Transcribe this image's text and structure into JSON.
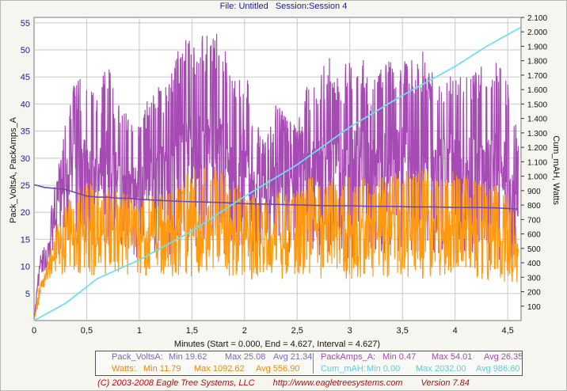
{
  "header": {
    "file": "File: Untitled",
    "session": "Session:Session 4"
  },
  "chart_data": {
    "type": "line",
    "y_left_label": "Pack_VoltsA, PackAmps_A",
    "y_right_label": "Cum_mAH, Watts",
    "x_label": "Minutes (Start = 0.000,  End = 4.627,  Interval =  4.627)",
    "xlim": [
      0,
      4.627
    ],
    "ylim_left": [
      0,
      56
    ],
    "ylim_right": [
      0,
      2100
    ],
    "x_ticks": [
      "0",
      "0,5",
      "1",
      "1,5",
      "2",
      "2,5",
      "3",
      "3,5",
      "4",
      "4,5"
    ],
    "y_left_ticks": [
      "5",
      "10",
      "15",
      "20",
      "25",
      "30",
      "35",
      "40",
      "45",
      "50",
      "55"
    ],
    "y_right_ticks": [
      "100",
      "200",
      "300",
      "400",
      "500",
      "600",
      "700",
      "800",
      "900",
      "1.000",
      "1.100",
      "1.200",
      "1.300",
      "1.400",
      "1.500",
      "1.600",
      "1.700",
      "1.800",
      "1.900",
      "2.000",
      "2.100"
    ],
    "grid": true,
    "series": [
      {
        "name": "PackAmps_A",
        "axis": "left",
        "color": "#a64ab4",
        "x": [
          0,
          0.05,
          0.1,
          0.2,
          0.3,
          0.4,
          0.5,
          0.6,
          0.7,
          0.8,
          0.9,
          1.0,
          1.1,
          1.2,
          1.3,
          1.4,
          1.5,
          1.6,
          1.7,
          1.8,
          1.9,
          2.0,
          2.1,
          2.2,
          2.3,
          2.4,
          2.5,
          2.6,
          2.7,
          2.8,
          2.9,
          3.0,
          3.1,
          3.2,
          3.3,
          3.4,
          3.5,
          3.6,
          3.7,
          3.8,
          3.9,
          4.0,
          4.1,
          4.2,
          4.3,
          4.4,
          4.5,
          4.6
        ],
        "values_high": [
          0,
          12,
          14,
          25,
          38,
          45,
          44,
          42,
          48,
          40,
          38,
          37,
          42,
          44,
          46,
          52,
          52,
          53,
          54,
          52,
          47,
          48,
          38,
          34,
          40,
          38,
          36,
          44,
          46,
          49,
          45,
          49,
          50,
          44,
          47,
          49,
          49,
          48,
          50,
          47,
          46,
          49,
          45,
          48,
          47,
          48,
          44,
          35
        ],
        "values_low": [
          0,
          8,
          9,
          12,
          14,
          13,
          14,
          12,
          13,
          12,
          13,
          11,
          12,
          13,
          12,
          13,
          12,
          11,
          13,
          12,
          12,
          12,
          11,
          12,
          11,
          11,
          12,
          12,
          11,
          12,
          12,
          11,
          12,
          13,
          12,
          11,
          12,
          12,
          12,
          11,
          12,
          12,
          12,
          12,
          11,
          11,
          11,
          10
        ],
        "min": "0.47",
        "max": "54.01",
        "avg": "26.35"
      },
      {
        "name": "Pack_VoltsA",
        "axis": "left",
        "color": "#6a4ab0",
        "x": [
          0,
          0.02,
          0.1,
          0.2,
          0.3,
          0.4,
          0.5,
          0.6,
          0.7,
          0.8,
          0.9,
          1.0,
          1.2,
          1.4,
          1.6,
          1.8,
          2.0,
          2.2,
          2.4,
          2.6,
          2.8,
          3.0,
          3.2,
          3.4,
          3.6,
          3.8,
          4.0,
          4.2,
          4.4,
          4.6
        ],
        "values": [
          25.08,
          25.0,
          24.6,
          24.4,
          24.2,
          23.6,
          23.0,
          22.8,
          22.8,
          22.6,
          22.6,
          22.4,
          22.2,
          22.0,
          21.9,
          21.8,
          21.6,
          21.5,
          21.4,
          21.3,
          21.2,
          21.2,
          21.1,
          21.1,
          21.0,
          21.0,
          20.9,
          20.9,
          20.8,
          20.6
        ],
        "min": "19.62",
        "max": "25.08",
        "avg": "21.34"
      },
      {
        "name": "Watts",
        "axis": "right",
        "color": "#ff9a10",
        "x": [
          0,
          0.05,
          0.1,
          0.2,
          0.3,
          0.4,
          0.5,
          0.6,
          0.7,
          0.8,
          0.9,
          1.0,
          1.1,
          1.2,
          1.3,
          1.4,
          1.5,
          1.6,
          1.7,
          1.8,
          1.9,
          2.0,
          2.1,
          2.2,
          2.3,
          2.4,
          2.5,
          2.6,
          2.7,
          2.8,
          2.9,
          3.0,
          3.1,
          3.2,
          3.3,
          3.4,
          3.5,
          3.6,
          3.7,
          3.8,
          3.9,
          4.0,
          4.1,
          4.2,
          4.3,
          4.4,
          4.5,
          4.6
        ],
        "values_high": [
          0,
          250,
          320,
          620,
          820,
          880,
          1000,
          880,
          940,
          900,
          860,
          850,
          860,
          900,
          940,
          1000,
          1050,
          1080,
          1090,
          1060,
          940,
          930,
          860,
          820,
          900,
          920,
          880,
          1000,
          980,
          1020,
          980,
          1000,
          1020,
          960,
          1000,
          1040,
          1060,
          1000,
          1080,
          1000,
          980,
          1050,
          1000,
          980,
          960,
          940,
          900,
          700
        ],
        "values_low": [
          0,
          180,
          230,
          300,
          330,
          320,
          310,
          300,
          320,
          300,
          310,
          280,
          290,
          310,
          300,
          310,
          300,
          290,
          310,
          300,
          290,
          300,
          280,
          290,
          280,
          270,
          290,
          300,
          280,
          290,
          290,
          280,
          290,
          300,
          290,
          280,
          290,
          300,
          290,
          280,
          290,
          290,
          290,
          290,
          270,
          270,
          260,
          240
        ],
        "min": "11.79",
        "max": "1092.62",
        "avg": "556.90"
      },
      {
        "name": "Cum_mAH",
        "axis": "right",
        "color": "#6de0f0",
        "x": [
          0,
          0.3,
          0.6,
          1.0,
          1.5,
          2.0,
          2.5,
          3.0,
          3.5,
          4.0,
          4.3,
          4.627
        ],
        "values": [
          0,
          120,
          290,
          420,
          620,
          860,
          1080,
          1340,
          1560,
          1760,
          1900,
          2032
        ],
        "min": "0.00",
        "max": "2032.00",
        "avg": "986.60"
      }
    ]
  },
  "legend": {
    "pack_volts": {
      "name": "Pack_VoltsA:",
      "min": "Min 19.62",
      "max": "Max 25.08",
      "avg": "Avg 21.34"
    },
    "pack_amps": {
      "name": "PackAmps_A:",
      "min": "Min 0.47",
      "max": "Max 54.01",
      "avg": "Avg 26.35"
    },
    "watts": {
      "name": "Watts:",
      "min": "Min 11.79",
      "max": "Max 1092.62",
      "avg": "Avg 556.90"
    },
    "cum_mah": {
      "name": "Cum_mAH:",
      "min": "Min 0.00",
      "max": "Max 2032.00",
      "avg": "Avg 986.60"
    }
  },
  "footer": {
    "copyright": "(C) 2003-2008 Eagle Tree Systems, LLC",
    "url": "http://www.eagletreesystems.com",
    "version": "Version 7.84"
  },
  "colors": {
    "amps": "#a64ab4",
    "volts": "#6a4ab0",
    "watts": "#ff9a10",
    "mah": "#6de0f0",
    "legend_volts": "#7d6ab8",
    "legend_amps": "#a64ab4",
    "legend_watts": "#e88a10",
    "legend_mah": "#5ccde0"
  }
}
